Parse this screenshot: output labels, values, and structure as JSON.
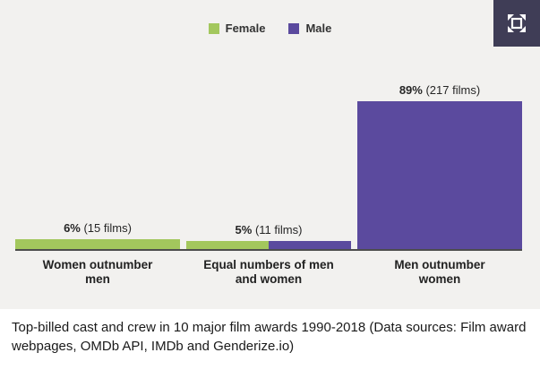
{
  "icons": {
    "expand": "fullscreen-expand-icon"
  },
  "colors": {
    "chart_background": "#f2f1ef",
    "caption_background": "#ffffff",
    "female_green": "#a3c75d",
    "male_purple": "#5b4a9e",
    "expand_button_background": "#3f3d56",
    "baseline": "#4d4d4d",
    "text": "#262626"
  },
  "chart_data": {
    "type": "bar",
    "title": "",
    "xlabel": "",
    "ylabel": "",
    "ylim": [
      0,
      100
    ],
    "grid": false,
    "legend_position": "top",
    "series": [
      {
        "name": "Female",
        "color": "#a3c75d"
      },
      {
        "name": "Male",
        "color": "#5b4a9e"
      }
    ],
    "categories": [
      "Women outnumber men",
      "Equal numbers of men and women",
      "Men outnumber women"
    ],
    "bars": [
      {
        "category": "Women outnumber men",
        "pct": 6,
        "films": 15,
        "label_pct": "6%",
        "label_films": "(15 films)",
        "segments": [
          {
            "series": "Female",
            "fraction": 1
          }
        ]
      },
      {
        "category": "Equal numbers of men and women",
        "pct": 5,
        "films": 11,
        "label_pct": "5%",
        "label_films": "(11 films)",
        "segments": [
          {
            "series": "Female",
            "fraction": 0.5
          },
          {
            "series": "Male",
            "fraction": 0.5
          }
        ]
      },
      {
        "category": "Men outnumber women",
        "pct": 89,
        "films": 217,
        "label_pct": "89%",
        "label_films": "(217 films)",
        "segments": [
          {
            "series": "Male",
            "fraction": 1
          }
        ]
      }
    ]
  },
  "caption": {
    "text": "Top-billed cast and crew in 10 major film awards 1990-2018 (Data sources: Film award webpages, OMDb API, IMDb and Genderize.io)"
  }
}
